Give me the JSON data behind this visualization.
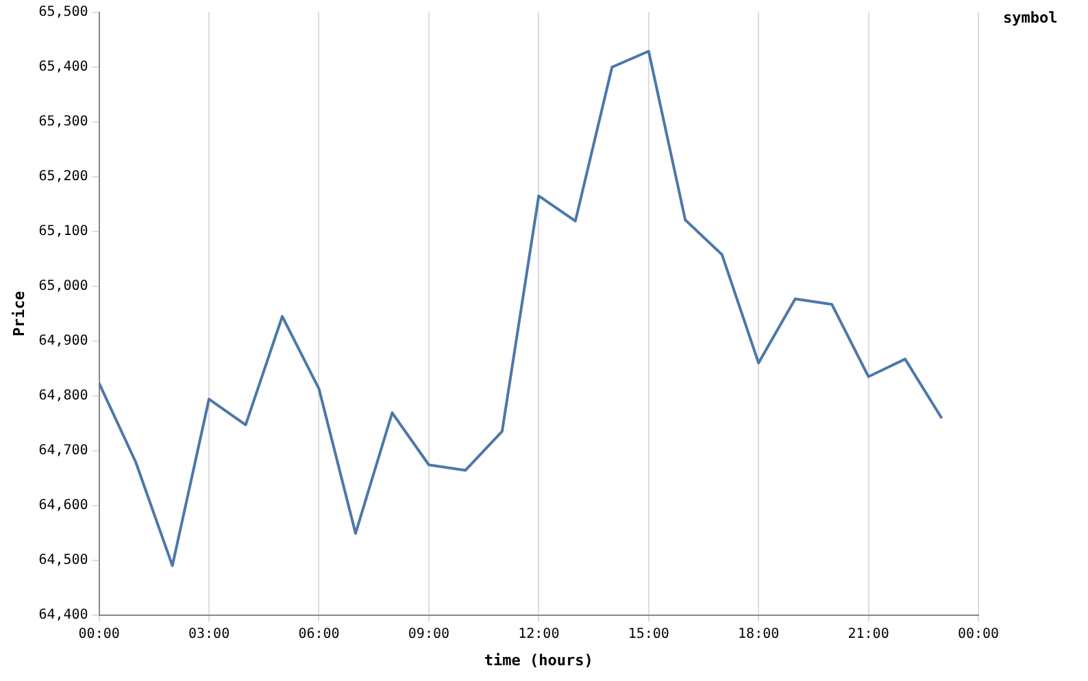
{
  "chart_data": {
    "type": "line",
    "xlabel": "time (hours)",
    "ylabel": "Price",
    "legend_title": "symbol",
    "grid": "x",
    "marker": "none",
    "line_style": "solid",
    "x": [
      0,
      1,
      2,
      3,
      4,
      5,
      6,
      7,
      8,
      9,
      10,
      11,
      12,
      13,
      14,
      15,
      16,
      17,
      18,
      19,
      20,
      21,
      22,
      23
    ],
    "xlim": [
      0,
      24
    ],
    "xticks": [
      {
        "value": 0,
        "label": "00:00"
      },
      {
        "value": 3,
        "label": "03:00"
      },
      {
        "value": 6,
        "label": "06:00"
      },
      {
        "value": 9,
        "label": "09:00"
      },
      {
        "value": 12,
        "label": "12:00"
      },
      {
        "value": 15,
        "label": "15:00"
      },
      {
        "value": 18,
        "label": "18:00"
      },
      {
        "value": 21,
        "label": "21:00"
      },
      {
        "value": 24,
        "label": "00:00"
      }
    ],
    "ylim": [
      64400,
      65500
    ],
    "yticks": [
      {
        "value": 64400,
        "label": "64,400"
      },
      {
        "value": 64500,
        "label": "64,500"
      },
      {
        "value": 64600,
        "label": "64,600"
      },
      {
        "value": 64700,
        "label": "64,700"
      },
      {
        "value": 64800,
        "label": "64,800"
      },
      {
        "value": 64900,
        "label": "64,900"
      },
      {
        "value": 65000,
        "label": "65,000"
      },
      {
        "value": 65100,
        "label": "65,100"
      },
      {
        "value": 65200,
        "label": "65,200"
      },
      {
        "value": 65300,
        "label": "65,300"
      },
      {
        "value": 65400,
        "label": "65,400"
      },
      {
        "value": 65500,
        "label": "65,500"
      }
    ],
    "series": [
      {
        "color": "#4c78a8",
        "values": [
          64823,
          64679,
          64490,
          64794,
          64747,
          64945,
          64813,
          64549,
          64769,
          64674,
          64664,
          64735,
          65165,
          65119,
          65400,
          65429,
          65121,
          65058,
          64860,
          64977,
          64967,
          64835,
          64867,
          64759
        ]
      }
    ]
  }
}
